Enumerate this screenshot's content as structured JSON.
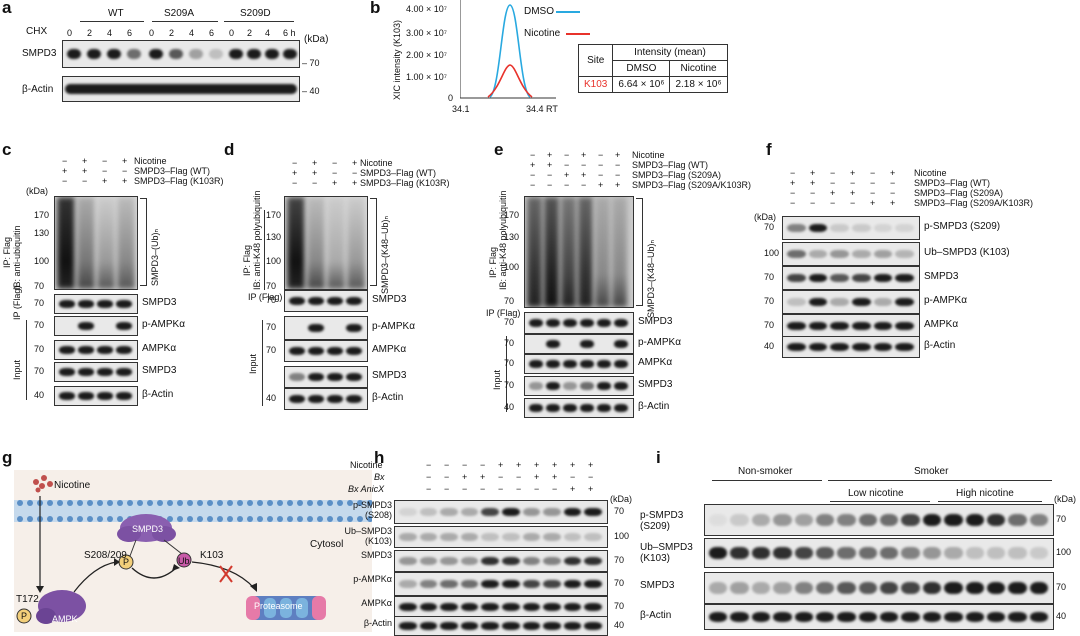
{
  "panels": {
    "a": "a",
    "b": "b",
    "c": "c",
    "d": "d",
    "e": "e",
    "f": "f",
    "g": "g",
    "h": "h",
    "i": "i"
  },
  "a": {
    "chx": "CHX",
    "groups": [
      "WT",
      "S209A",
      "S209D"
    ],
    "times": [
      "0",
      "2",
      "4",
      "6",
      "0",
      "2",
      "4",
      "6",
      "0",
      "2",
      "4",
      "6 h"
    ],
    "kda": "(kDa)",
    "rows": [
      "SMPD3",
      "β-Actin"
    ],
    "mw": [
      "70",
      "40"
    ]
  },
  "b": {
    "ylabel": "XIC intensity (K103)",
    "yticks": [
      "4.00 × 10⁷",
      "3.00 × 10⁷",
      "2.00 × 10⁷",
      "1.00 × 10⁷",
      "0"
    ],
    "xticks": [
      "34.1",
      "34.4 RT"
    ],
    "legend": [
      "DMSO",
      "Nicotine"
    ],
    "colors": {
      "dmso": "#29a9e0",
      "nicotine": "#e8322b"
    },
    "table": {
      "site": "Site",
      "intensity": "Intensity (mean)",
      "dmso": "DMSO",
      "nicotine": "Nicotine",
      "k103": "K103",
      "v1": "6.64 × 10⁶",
      "v2": "2.18 × 10⁶"
    }
  },
  "c": {
    "signs": [
      [
        "−",
        "+",
        "−",
        "+"
      ],
      [
        "+",
        "+",
        "−",
        "−"
      ],
      [
        "−",
        "−",
        "+",
        "+"
      ]
    ],
    "conds": [
      "Nicotine",
      "SMPD3–Flag (WT)",
      "SMPD3–Flag (K103R)"
    ],
    "kda": "(kDa)",
    "mw": [
      "170",
      "130",
      "100",
      "70",
      "70",
      "70",
      "70",
      "70",
      "40"
    ],
    "ip": "IP: Flag",
    "ib": "IB: anti-ubiquitin",
    "ip2": "IP (Flag)",
    "input": "Input",
    "ub": "SMPD3–(Ub)ₙ",
    "rows": [
      "SMPD3",
      "p-AMPKα",
      "AMPKα",
      "SMPD3",
      "β-Actin"
    ]
  },
  "d": {
    "signs": [
      [
        "−",
        "+",
        "−",
        "+"
      ],
      [
        "+",
        "+",
        "−",
        "−"
      ],
      [
        "−",
        "−",
        "+",
        "+"
      ]
    ],
    "conds": [
      "Nicotine",
      "SMPD3–Flag (WT)",
      "SMPD3–Flag (K103R)"
    ],
    "mw": [
      "170",
      "130",
      "100",
      "70",
      "70",
      "70",
      "70",
      "40"
    ],
    "ip": "IP: Flag",
    "ib": "IB: anti-K48 polyubiquitin",
    "ip2": "IP (Flag)",
    "input": "Input",
    "ub": "SMPD3–(K48–Ub)ₙ",
    "rows": [
      "SMPD3",
      "p-AMPKα",
      "AMPKα",
      "SMPD3",
      "β-Actin"
    ]
  },
  "e": {
    "signs": [
      [
        "−",
        "+",
        "−",
        "+",
        "−",
        "+"
      ],
      [
        "+",
        "+",
        "−",
        "−",
        "−",
        "−"
      ],
      [
        "−",
        "−",
        "+",
        "+",
        "−",
        "−"
      ],
      [
        "−",
        "−",
        "−",
        "−",
        "+",
        "+"
      ]
    ],
    "conds": [
      "Nicotine",
      "SMPD3–Flag (WT)",
      "SMPD3–Flag (S209A)",
      "SMPD3–Flag (S209A/K103R)"
    ],
    "mw": [
      "170",
      "130",
      "100",
      "70",
      "70",
      "70",
      "70",
      "70",
      "40"
    ],
    "ip": "IP: Flag",
    "ib": "IB: anti-K48 polyubiquitin",
    "ip2": "IP (Flag)",
    "input": "Input",
    "ub": "SMPD3–(K48–Ub)ₙ",
    "rows": [
      "SMPD3",
      "p-AMPKα",
      "AMPKα",
      "SMPD3",
      "β-Actin"
    ]
  },
  "f": {
    "signs": [
      [
        "−",
        "+",
        "−",
        "+",
        "−",
        "+"
      ],
      [
        "+",
        "+",
        "−",
        "−",
        "−",
        "−"
      ],
      [
        "−",
        "−",
        "+",
        "+",
        "−",
        "−"
      ],
      [
        "−",
        "−",
        "−",
        "−",
        "+",
        "+"
      ]
    ],
    "conds": [
      "Nicotine",
      "SMPD3–Flag (WT)",
      "SMPD3–Flag (S209A)",
      "SMPD3–Flag (S209A/K103R)"
    ],
    "kda": "(kDa)",
    "mw": [
      "70",
      "100",
      "70",
      "70",
      "70",
      "40"
    ],
    "rows": [
      "p-SMPD3 (S209)",
      "Ub–SMPD3 (K103)",
      "SMPD3",
      "p-AMPKα",
      "AMPKα",
      "β-Actin"
    ]
  },
  "g": {
    "nicotine": "Nicotine",
    "smpd3": "SMPD3",
    "s208": "S208/209",
    "k103": "K103",
    "t172": "T172",
    "ampk": "AMPK",
    "cytosol": "Cytosol",
    "proteasome": "Proteasome",
    "p": "P",
    "ub": "Ub"
  },
  "h": {
    "conds": [
      "Nicotine",
      "Bx",
      "Bx AnicX"
    ],
    "signs": [
      [
        "−",
        "−",
        "−",
        "−",
        "+",
        "+",
        "+",
        "+",
        "+",
        "+"
      ],
      [
        "−",
        "−",
        "+",
        "+",
        "−",
        "−",
        "+",
        "+",
        "−",
        "−"
      ],
      [
        "−",
        "−",
        "−",
        "−",
        "−",
        "−",
        "−",
        "−",
        "+",
        "+"
      ]
    ],
    "kda": "(kDa)",
    "rows": [
      "p-SMPD3 (S208)",
      "Ub–SMPD3 (K103)",
      "SMPD3",
      "p-AMPKα",
      "AMPKα",
      "β-Actin"
    ],
    "mw": [
      "70",
      "100",
      "70",
      "70",
      "70",
      "40"
    ]
  },
  "i": {
    "groups": [
      "Non-smoker",
      "Smoker",
      "Low nicotine",
      "High nicotine"
    ],
    "kda": "(kDa)",
    "rows": [
      "p-SMPD3 (S209)",
      "Ub–SMPD3 (K103)",
      "SMPD3",
      "β-Actin"
    ],
    "mw": [
      "70",
      "100",
      "70",
      "40"
    ]
  }
}
